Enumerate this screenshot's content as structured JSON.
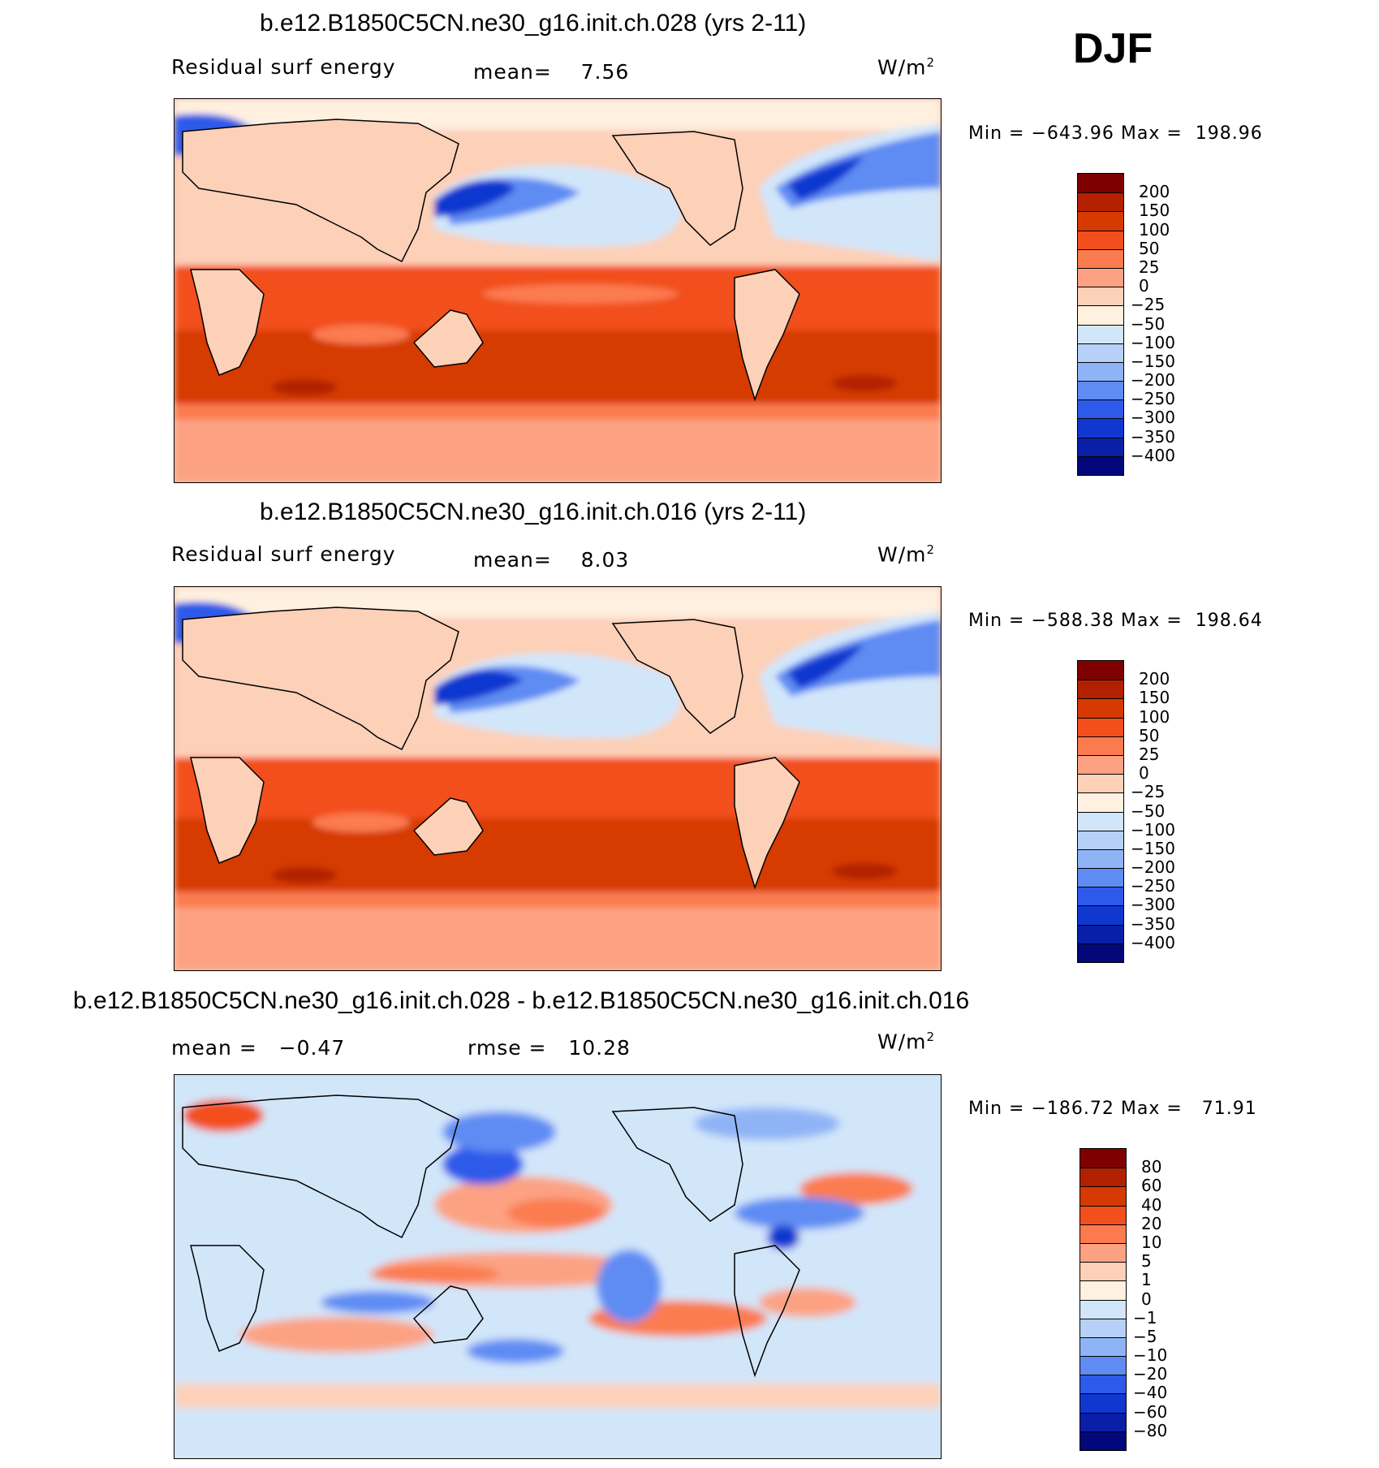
{
  "season": "DJF",
  "panels": [
    {
      "title": "b.e12.B1850C5CN.ne30_g16.init.ch.028 (yrs 2-11)",
      "left_label": "Residual surf energy",
      "stat_text": "mean=    7.56",
      "units_base": "W/m",
      "units_exp": "2",
      "minmax": "Min = −643.96 Max =  198.96",
      "kind": "field"
    },
    {
      "title": "b.e12.B1850C5CN.ne30_g16.init.ch.016 (yrs 2-11)",
      "left_label": "Residual surf energy",
      "stat_text": "mean=    8.03",
      "units_base": "W/m",
      "units_exp": "2",
      "minmax": "Min = −588.38 Max =  198.64",
      "kind": "field"
    },
    {
      "title": "b.e12.B1850C5CN.ne30_g16.init.ch.028 - b.e12.B1850C5CN.ne30_g16.init.ch.016",
      "left_label": "mean =   −0.47",
      "stat_text": "rmse =   10.28",
      "units_base": "W/m",
      "units_exp": "2",
      "minmax": "Min = −186.72 Max =   71.91",
      "kind": "diff"
    }
  ],
  "colorbars": {
    "field": {
      "colors": [
        "#7f0000",
        "#b22000",
        "#d63a00",
        "#f24f1c",
        "#fb7b4f",
        "#fca283",
        "#fdd0b8",
        "#fff0e0",
        "#d2e6fa",
        "#b6d1f8",
        "#8fb4f6",
        "#5f8cf3",
        "#2d5ae9",
        "#1038d0",
        "#0a1fa8",
        "#02087a"
      ],
      "labels": [
        "200",
        "150",
        "100",
        "50",
        "25",
        "0",
        "−25",
        "−50",
        "−100",
        "−150",
        "−200",
        "−250",
        "−300",
        "−350",
        "−400"
      ]
    },
    "diff": {
      "colors": [
        "#7f0000",
        "#b22000",
        "#d63a00",
        "#f24f1c",
        "#fb7b4f",
        "#fca283",
        "#fdd0b8",
        "#fff0e0",
        "#d2e6fa",
        "#b6d1f8",
        "#8fb4f6",
        "#5f8cf3",
        "#2d5ae9",
        "#1038d0",
        "#0a1fa8",
        "#02087a"
      ],
      "labels": [
        "80",
        "60",
        "40",
        "20",
        "10",
        "5",
        "1",
        "0",
        "−1",
        "−5",
        "−10",
        "−20",
        "−40",
        "−60",
        "−80"
      ]
    }
  }
}
